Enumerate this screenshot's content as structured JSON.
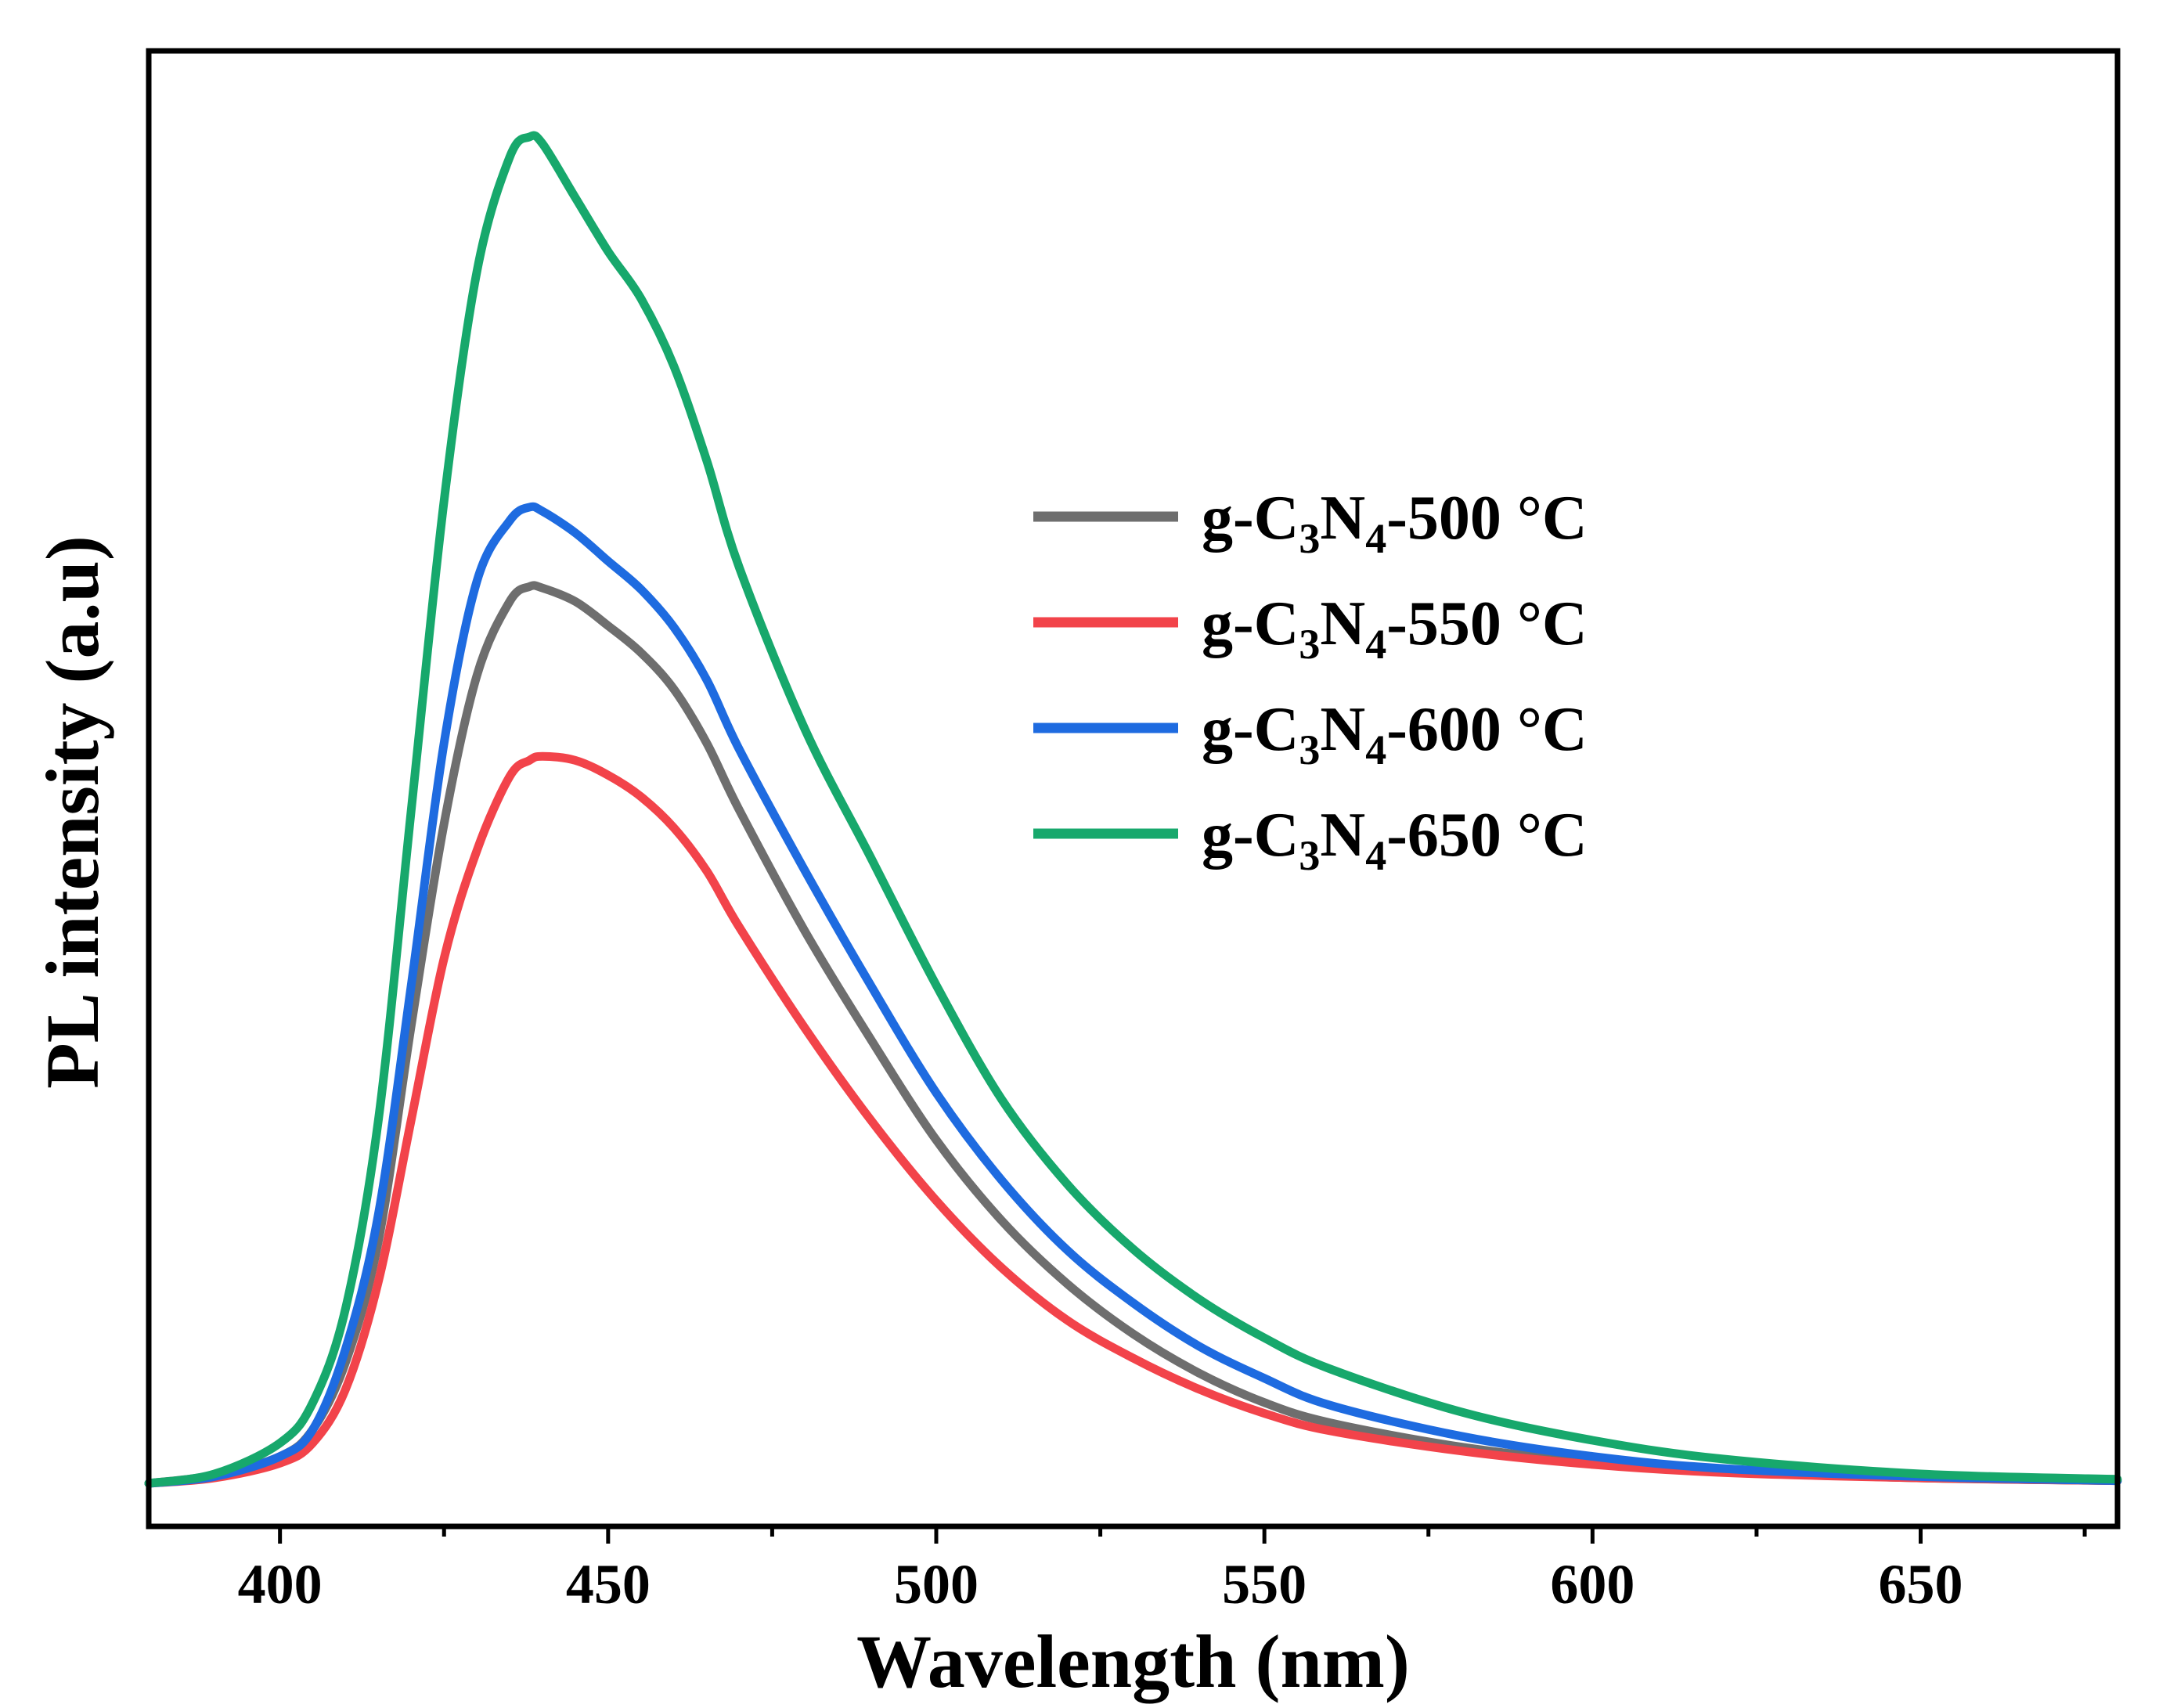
{
  "chart_data": {
    "type": "line",
    "title": "",
    "xlabel": "Wavelength (nm)",
    "ylabel": "PL intensity (a.u)",
    "xlim": [
      380,
      680
    ],
    "ylim": [
      0,
      1.0
    ],
    "x_ticks": [
      400,
      450,
      500,
      550,
      600,
      650
    ],
    "x_tick_labels": [
      "400",
      "450",
      "500",
      "550",
      "600",
      "650"
    ],
    "y_ticks_shown": false,
    "grid": false,
    "legend_position": "center-right",
    "x": [
      380,
      390,
      400,
      405,
      410,
      415,
      420,
      425,
      430,
      435,
      438,
      440,
      445,
      450,
      455,
      460,
      465,
      470,
      480,
      490,
      500,
      510,
      520,
      530,
      540,
      550,
      560,
      580,
      600,
      620,
      650,
      680
    ],
    "series": [
      {
        "name": "g-C3N4-500 °C",
        "legend": {
          "prefix": "g-C",
          "sub1": "3",
          "mid": "N",
          "sub2": "4",
          "suffix": "-500 °C"
        },
        "color": "#6e6e6e",
        "values": [
          0.0,
          0.006,
          0.02,
          0.04,
          0.09,
          0.18,
          0.34,
          0.49,
          0.6,
          0.655,
          0.666,
          0.665,
          0.655,
          0.637,
          0.617,
          0.59,
          0.55,
          0.5,
          0.41,
          0.33,
          0.255,
          0.195,
          0.148,
          0.111,
          0.082,
          0.06,
          0.045,
          0.027,
          0.016,
          0.009,
          0.004,
          0.002
        ]
      },
      {
        "name": "g-C3N4-550 °C",
        "legend": {
          "prefix": "g-C",
          "sub1": "3",
          "mid": "N",
          "sub2": "4",
          "suffix": "-550 °C"
        },
        "color": "#f2434a",
        "values": [
          0.0,
          0.004,
          0.015,
          0.03,
          0.07,
          0.15,
          0.27,
          0.39,
          0.47,
          0.525,
          0.537,
          0.54,
          0.537,
          0.526,
          0.51,
          0.487,
          0.455,
          0.413,
          0.338,
          0.27,
          0.21,
          0.16,
          0.121,
          0.093,
          0.07,
          0.052,
          0.039,
          0.024,
          0.014,
          0.008,
          0.004,
          0.002
        ]
      },
      {
        "name": "g-C3N4-600 °C",
        "legend": {
          "prefix": "g-C",
          "sub1": "3",
          "mid": "N",
          "sub2": "4",
          "suffix": "-600 °C"
        },
        "color": "#1e6be0",
        "values": [
          0.0,
          0.005,
          0.02,
          0.04,
          0.1,
          0.2,
          0.37,
          0.55,
          0.67,
          0.715,
          0.725,
          0.722,
          0.706,
          0.685,
          0.664,
          0.636,
          0.597,
          0.545,
          0.455,
          0.37,
          0.29,
          0.225,
          0.173,
          0.134,
          0.102,
          0.078,
          0.058,
          0.035,
          0.02,
          0.011,
          0.005,
          0.002
        ]
      },
      {
        "name": "g-C3N4-650 °C",
        "legend": {
          "prefix": "g-C",
          "sub1": "3",
          "mid": "N",
          "sub2": "4",
          "suffix": "-650 °C"
        },
        "color": "#17a86c",
        "values": [
          0.0,
          0.007,
          0.03,
          0.06,
          0.13,
          0.27,
          0.5,
          0.73,
          0.9,
          0.985,
          1.0,
          0.995,
          0.955,
          0.915,
          0.88,
          0.83,
          0.76,
          0.68,
          0.56,
          0.465,
          0.37,
          0.285,
          0.222,
          0.174,
          0.137,
          0.108,
          0.085,
          0.053,
          0.032,
          0.018,
          0.007,
          0.003
        ]
      }
    ]
  }
}
